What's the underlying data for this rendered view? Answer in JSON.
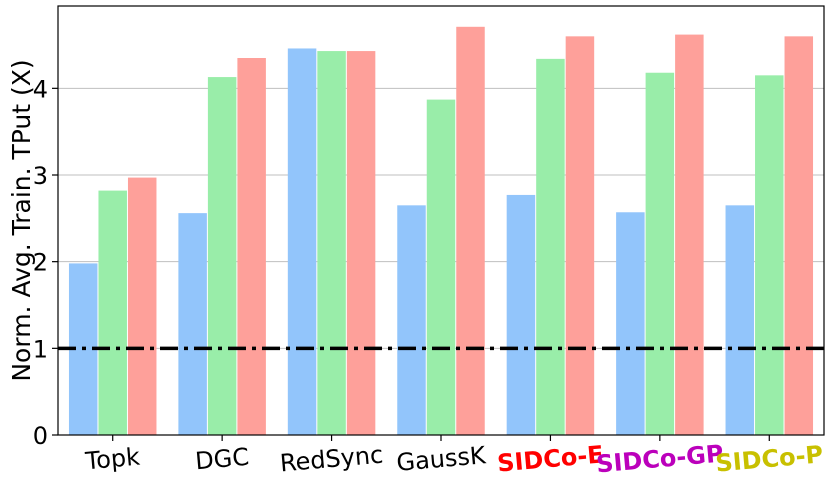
{
  "chart_data": {
    "type": "bar",
    "title": "",
    "xlabel": "",
    "ylabel": "Norm. Avg. Train. TPut (X)",
    "ylim": [
      0,
      4.95
    ],
    "yticks": [
      0,
      1,
      2,
      3,
      4
    ],
    "grid": "horizontal",
    "legend": "none",
    "reference_line": {
      "y": 1,
      "style": "dash-dot",
      "color": "#000000"
    },
    "categories": [
      "Topk",
      "DGC",
      "RedSync",
      "GaussK",
      "SIDCo-E",
      "SIDCo-GP",
      "SIDCo-P"
    ],
    "category_label_colors": [
      "#000000",
      "#000000",
      "#000000",
      "#000000",
      "#ff0000",
      "#bb00bb",
      "#c8c000"
    ],
    "category_label_bold": [
      false,
      false,
      false,
      false,
      true,
      true,
      true
    ],
    "series": [
      {
        "color": "#92c5fb",
        "values": [
          1.98,
          2.56,
          4.46,
          2.65,
          2.77,
          2.57,
          2.65
        ]
      },
      {
        "color": "#99eda9",
        "values": [
          2.82,
          4.13,
          4.43,
          3.87,
          4.34,
          4.18,
          4.15
        ]
      },
      {
        "color": "#fea09a",
        "values": [
          2.97,
          4.35,
          4.43,
          4.71,
          4.6,
          4.62,
          4.6
        ]
      }
    ]
  }
}
